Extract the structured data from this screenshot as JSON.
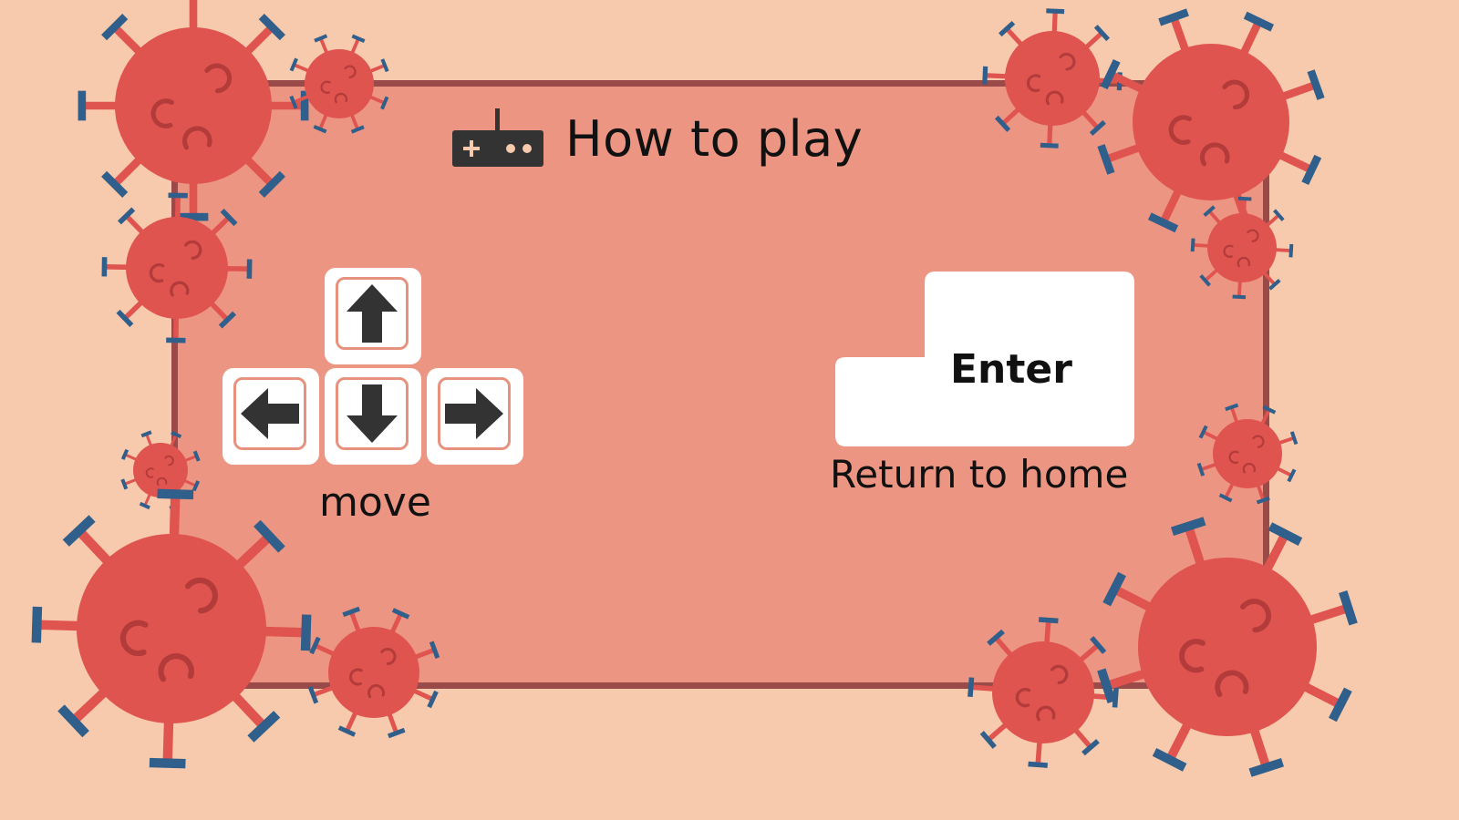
{
  "title": "How to play",
  "title_icon": "gamepad-icon",
  "controls": {
    "move": {
      "keys": [
        "up-arrow-icon",
        "left-arrow-icon",
        "down-arrow-icon",
        "right-arrow-icon"
      ],
      "label": "move"
    },
    "enter": {
      "key_label": "Enter",
      "label": "Return to home"
    }
  },
  "colors": {
    "background": "#f7c9ad",
    "panel": "#ec9583",
    "panel_border": "#9b4a4a",
    "virus_body": "#e05450",
    "virus_spike_tip": "#2f5f8a",
    "key_face": "#ffffff",
    "key_inner_border": "#e7917f"
  }
}
